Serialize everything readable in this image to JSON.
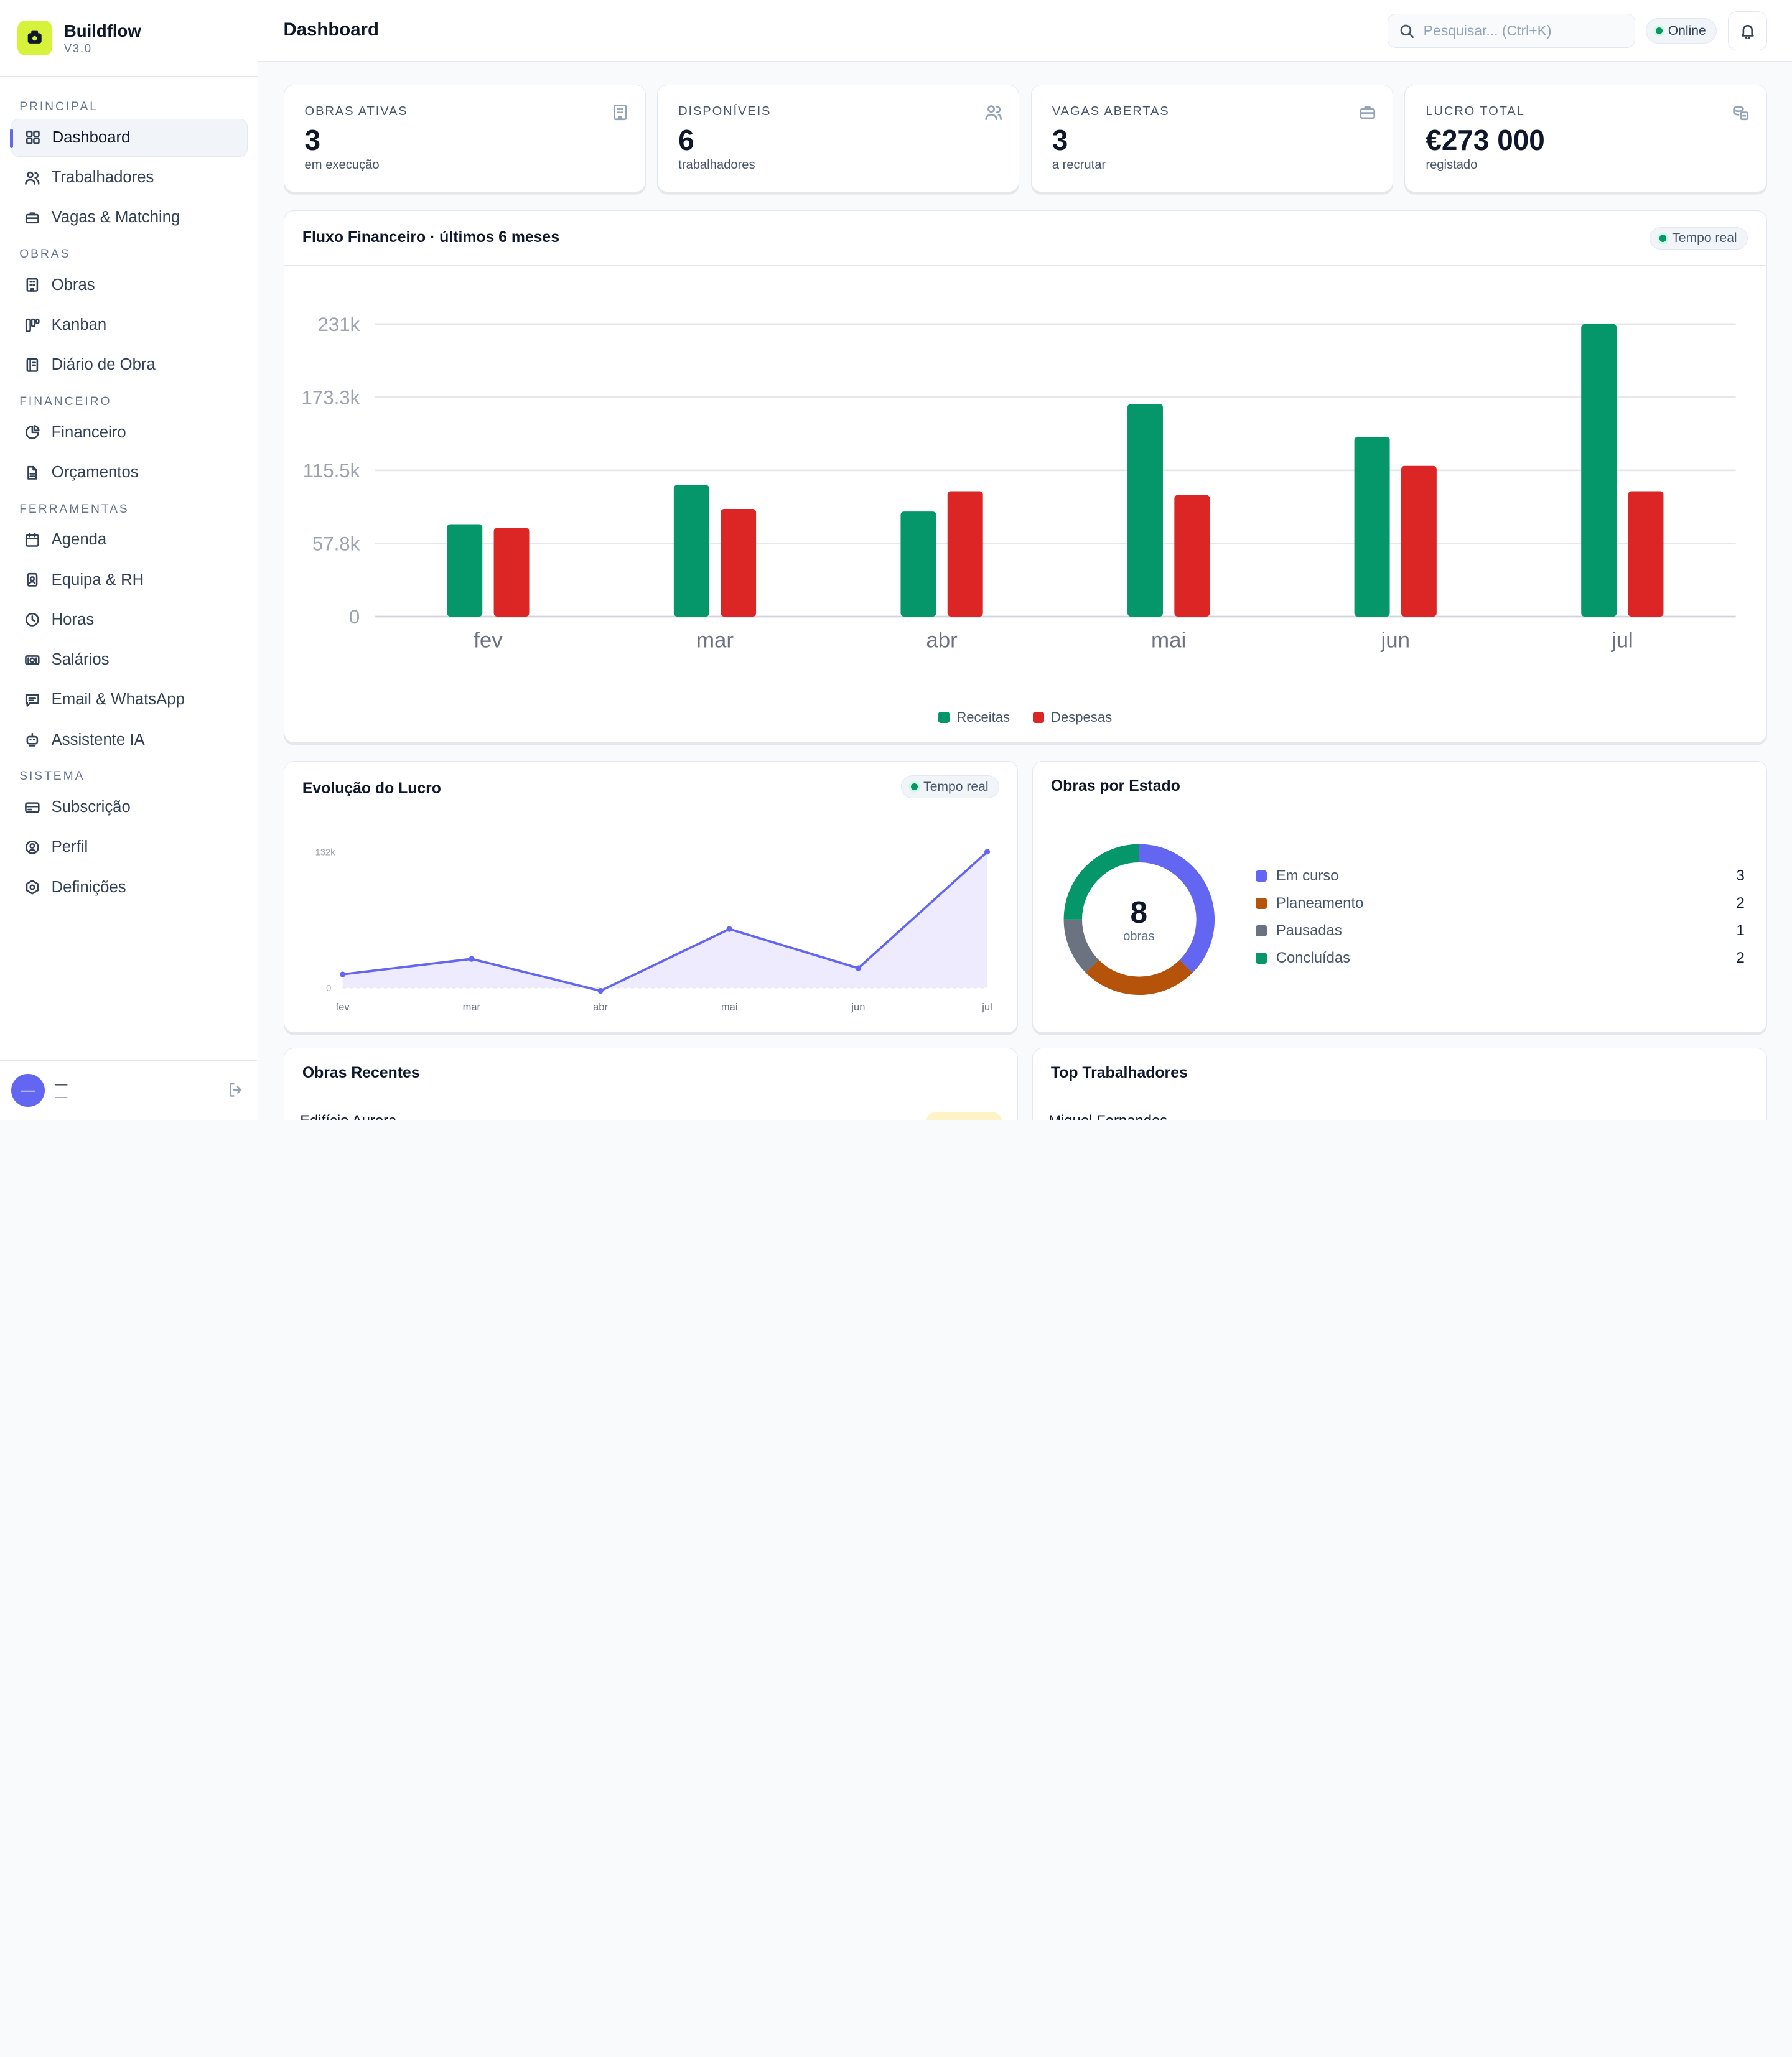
{
  "brand": {
    "name": "Buildflow",
    "version": "V3.0"
  },
  "sidebar": {
    "sections": [
      {
        "title": "PRINCIPAL",
        "items": [
          {
            "label": "Dashboard",
            "icon": "dashboard-icon",
            "active": true
          },
          {
            "label": "Trabalhadores",
            "icon": "users-icon"
          },
          {
            "label": "Vagas & Matching",
            "icon": "briefcase-icon"
          }
        ]
      },
      {
        "title": "OBRAS",
        "items": [
          {
            "label": "Obras",
            "icon": "building-icon"
          },
          {
            "label": "Kanban",
            "icon": "kanban-icon"
          },
          {
            "label": "Diário de Obra",
            "icon": "notebook-icon"
          }
        ]
      },
      {
        "title": "FINANCEIRO",
        "items": [
          {
            "label": "Financeiro",
            "icon": "pie-chart-icon"
          },
          {
            "label": "Orçamentos",
            "icon": "document-icon"
          }
        ]
      },
      {
        "title": "FERRAMENTAS",
        "items": [
          {
            "label": "Agenda",
            "icon": "calendar-icon"
          },
          {
            "label": "Equipa & RH",
            "icon": "id-badge-icon"
          },
          {
            "label": "Horas",
            "icon": "clock-icon"
          },
          {
            "label": "Salários",
            "icon": "banknote-icon"
          },
          {
            "label": "Email & WhatsApp",
            "icon": "message-icon"
          },
          {
            "label": "Assistente IA",
            "icon": "bot-icon"
          }
        ]
      },
      {
        "title": "SISTEMA",
        "items": [
          {
            "label": "Subscrição",
            "icon": "credit-card-icon"
          },
          {
            "label": "Perfil",
            "icon": "user-circle-icon"
          },
          {
            "label": "Definições",
            "icon": "settings-icon"
          }
        ]
      }
    ],
    "footer": {
      "avatar": "—",
      "name": "—",
      "role": "—"
    }
  },
  "header": {
    "title": "Dashboard",
    "search_placeholder": "Pesquisar... (Ctrl+K)",
    "status": "Online"
  },
  "kpis": [
    {
      "label": "OBRAS ATIVAS",
      "value": "3",
      "sub": "em execução",
      "icon": "building-icon"
    },
    {
      "label": "DISPONÍVEIS",
      "value": "6",
      "sub": "trabalhadores",
      "icon": "users-icon"
    },
    {
      "label": "VAGAS ABERTAS",
      "value": "3",
      "sub": "a recrutar",
      "icon": "briefcase-icon"
    },
    {
      "label": "LUCRO TOTAL",
      "value": "€273 000",
      "sub": "registado",
      "icon": "coins-icon"
    }
  ],
  "cash_flow": {
    "title": "Fluxo Financeiro · últimos 6 meses",
    "badge": "Tempo real"
  },
  "profit": {
    "title": "Evolução do Lucro",
    "badge": "Tempo real"
  },
  "status": {
    "title": "Obras por Estado",
    "total": "8",
    "total_caption": "obras",
    "items": [
      {
        "label": "Em curso",
        "count": 3,
        "color": "#6366f1"
      },
      {
        "label": "Planeamento",
        "count": 2,
        "color": "#b45309"
      },
      {
        "label": "Pausadas",
        "count": 1,
        "color": "#6b7280"
      },
      {
        "label": "Concluídas",
        "count": 2,
        "color": "#059669"
      }
    ]
  },
  "recent": {
    "title": "Obras Recentes",
    "first_item": "Edifício Aurora"
  },
  "top_workers": {
    "title": "Top Trabalhadores",
    "first_item": "Miguel Fernandes"
  },
  "colors": {
    "accent": "#6366f1",
    "receitas": "#059669",
    "despesas": "#dc2626",
    "brand": "#d7f23a"
  },
  "chart_data": [
    {
      "type": "bar",
      "categories": [
        "fev",
        "mar",
        "abr",
        "mai",
        "jun",
        "jul"
      ],
      "series": [
        {
          "name": "Receitas",
          "values": [
            73000,
            104000,
            83000,
            168000,
            142000,
            231000
          ],
          "color": "#059669"
        },
        {
          "name": "Despesas",
          "values": [
            70000,
            85000,
            99000,
            96000,
            119000,
            99000
          ],
          "color": "#dc2626"
        }
      ],
      "yticks": [
        "0",
        "57.8k",
        "115.5k",
        "173.3k",
        "231k"
      ],
      "ylim": [
        0,
        231000
      ],
      "grid": true,
      "legend": "bottom"
    },
    {
      "type": "area",
      "categories": [
        "fev",
        "mar",
        "abr",
        "mai",
        "jun",
        "jul"
      ],
      "values": [
        13000,
        28000,
        -3000,
        57000,
        19000,
        132000
      ],
      "yticks": [
        "0",
        "132k"
      ],
      "ylim": [
        0,
        132000
      ],
      "color": "#6366f1"
    }
  ]
}
